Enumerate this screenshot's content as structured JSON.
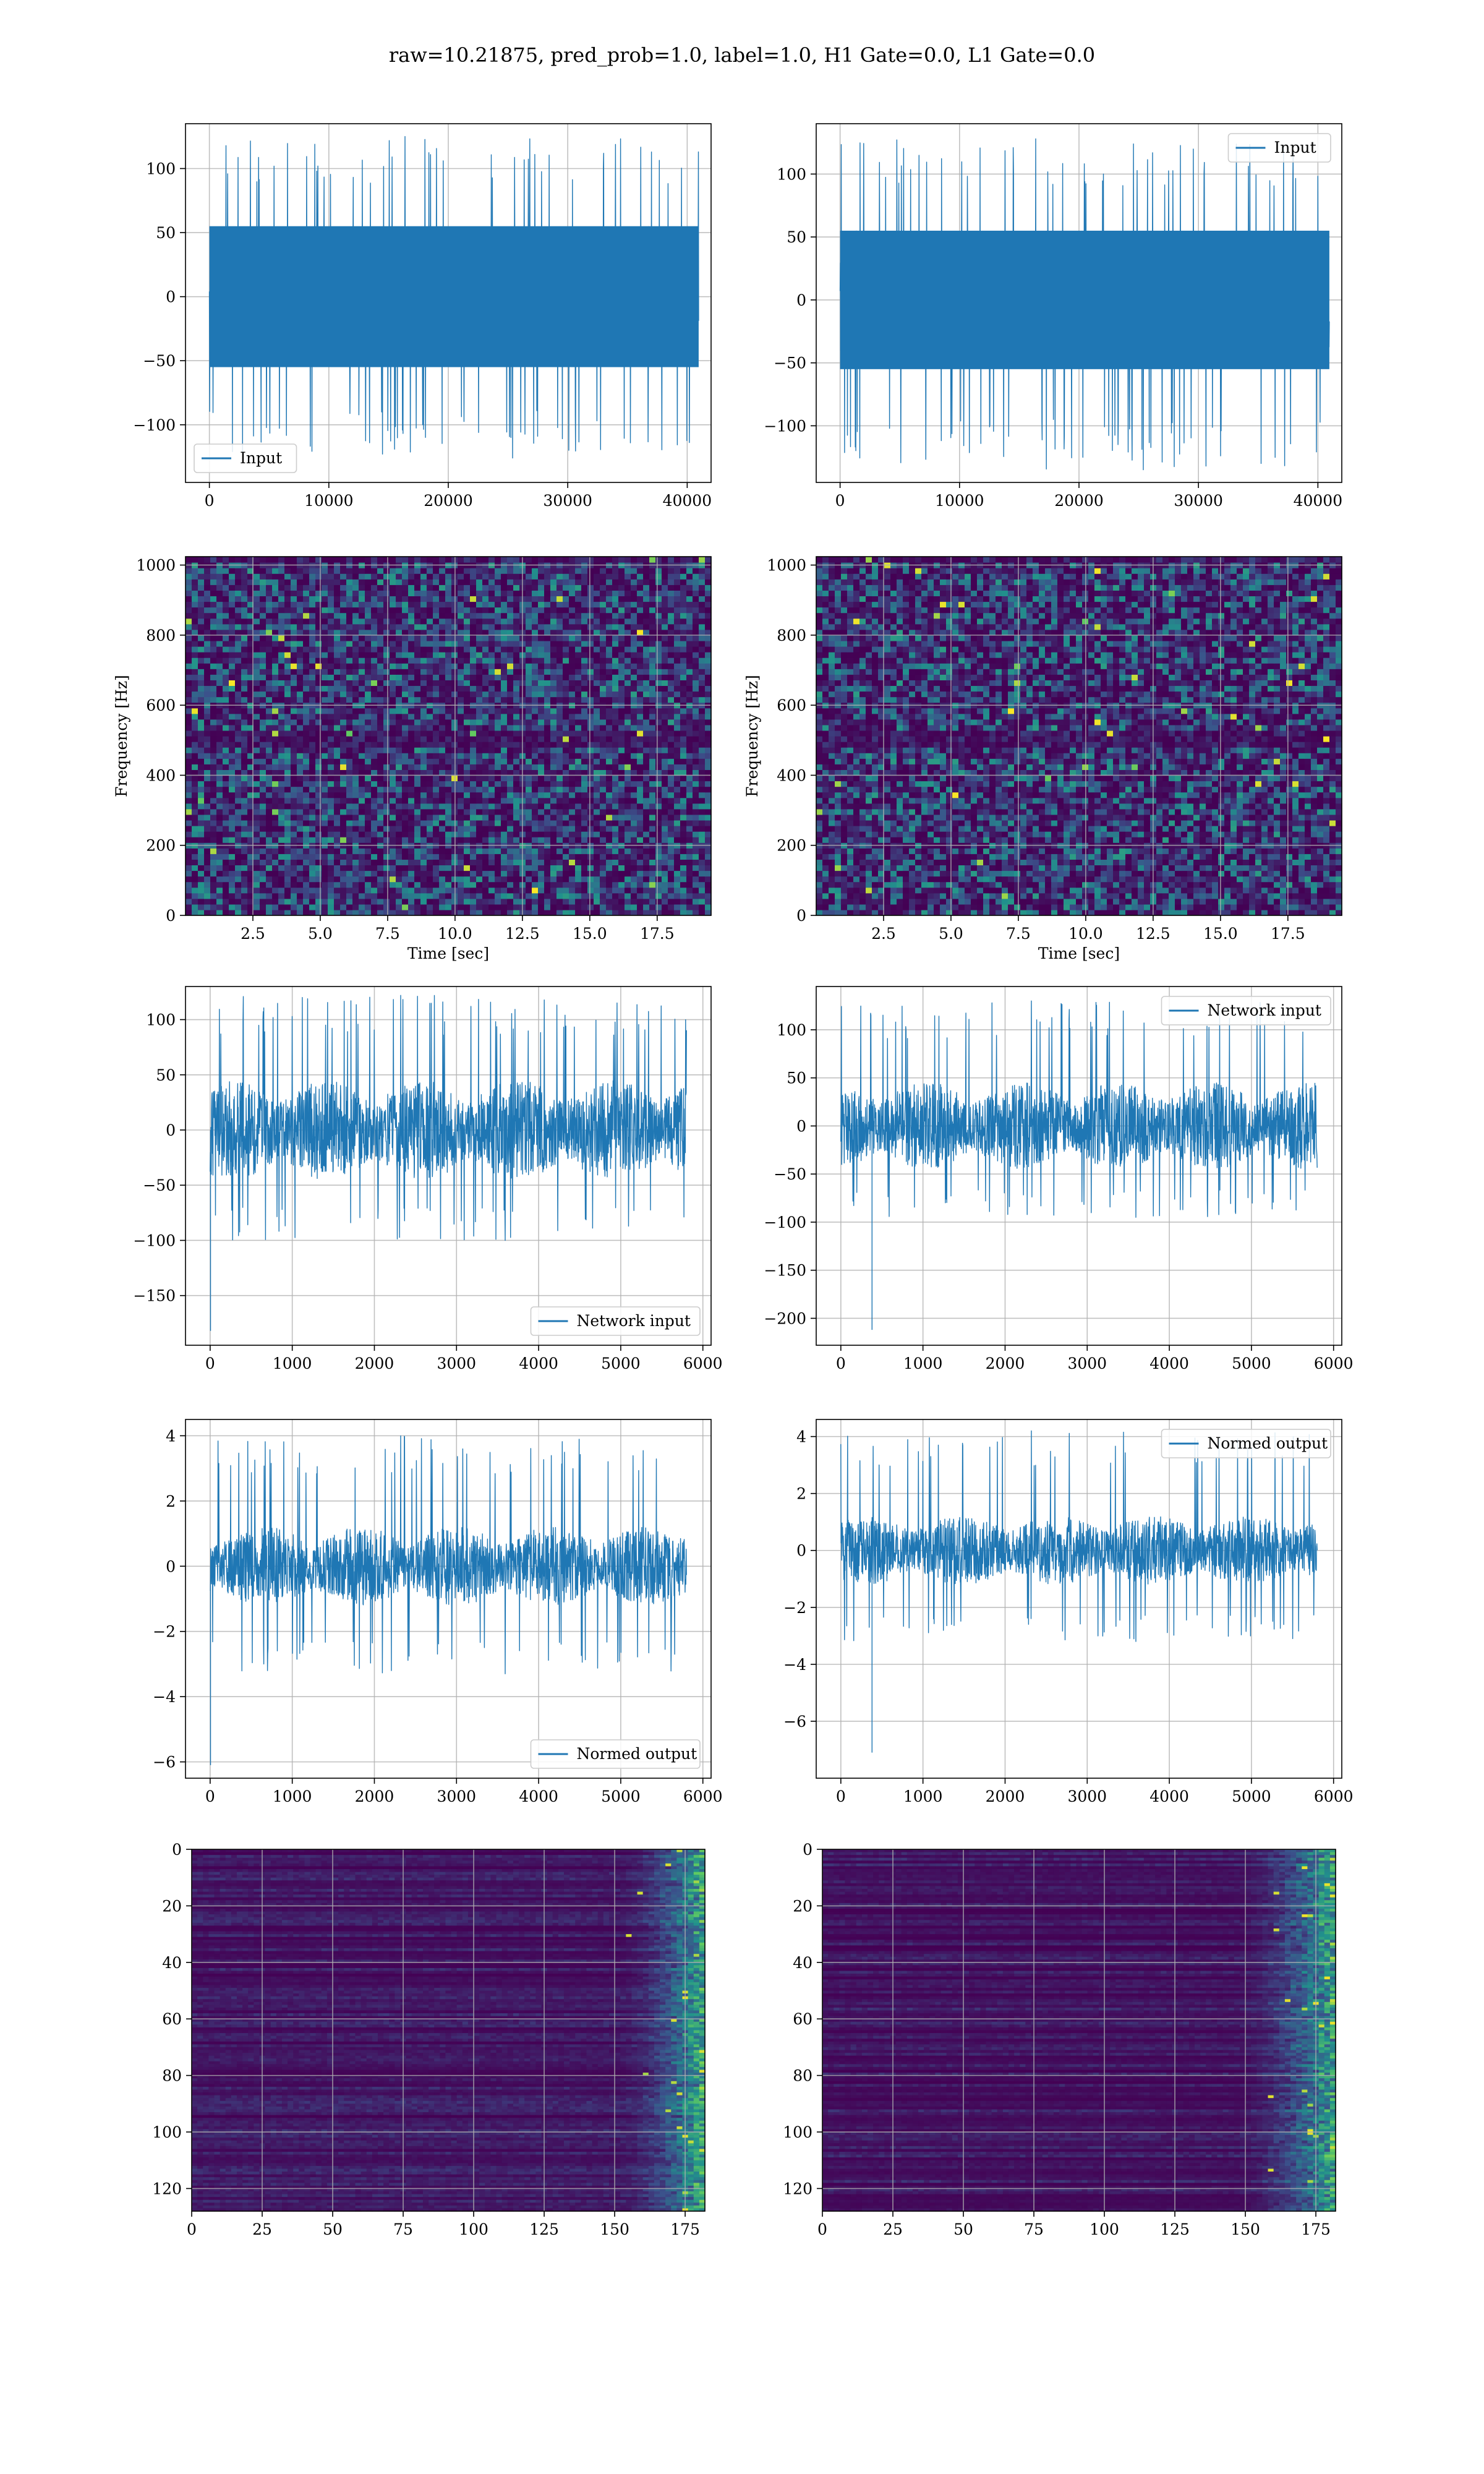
{
  "figure": {
    "suptitle": "raw=10.21875, pred_prob=1.0, label=1.0, H1 Gate=0.0, L1 Gate=0.0"
  },
  "colors": {
    "line": "#1f77b4",
    "grid": "#b0b0b0",
    "viridis_low": "#440154",
    "viridis_mid": "#21918c",
    "viridis_high": "#fde725"
  },
  "chart_data": [
    {
      "id": "row1-left",
      "type": "line",
      "signal": "noise-dense",
      "xlim": [
        -2000,
        42000
      ],
      "ylim": [
        -145,
        135
      ],
      "xticks": [
        0,
        10000,
        20000,
        30000,
        40000
      ],
      "yticks": [
        -100,
        -50,
        0,
        50,
        100
      ],
      "x_range": [
        0,
        40960
      ],
      "envelope": {
        "core": 55,
        "peak_max": 125,
        "peak_min": -126
      },
      "series": [
        {
          "name": "Input"
        }
      ],
      "legend": "lower left",
      "grid": true
    },
    {
      "id": "row1-right",
      "type": "line",
      "signal": "noise-dense",
      "xlim": [
        -2000,
        42000
      ],
      "ylim": [
        -145,
        140
      ],
      "xticks": [
        0,
        10000,
        20000,
        30000,
        40000
      ],
      "yticks": [
        -100,
        -50,
        0,
        50,
        100
      ],
      "x_range": [
        0,
        40960
      ],
      "envelope": {
        "core": 55,
        "peak_max": 128,
        "peak_min": -135
      },
      "series": [
        {
          "name": "Input"
        }
      ],
      "legend": "upper right",
      "grid": true
    },
    {
      "id": "row2-left",
      "type": "heatmap",
      "kind": "spectrogram",
      "xlim": [
        0,
        19.5
      ],
      "ylim": [
        0,
        1024
      ],
      "xticks": [
        2.5,
        5.0,
        7.5,
        10.0,
        12.5,
        15.0,
        17.5
      ],
      "yticks": [
        0,
        200,
        400,
        600,
        800,
        1000
      ],
      "xlabel": "Time [sec]",
      "ylabel": "Frequency [Hz]",
      "grid": true,
      "dark_band_hz": 500
    },
    {
      "id": "row2-right",
      "type": "heatmap",
      "kind": "spectrogram",
      "xlim": [
        0,
        19.5
      ],
      "ylim": [
        0,
        1024
      ],
      "xticks": [
        2.5,
        5.0,
        7.5,
        10.0,
        12.5,
        15.0,
        17.5
      ],
      "yticks": [
        0,
        200,
        400,
        600,
        800,
        1000
      ],
      "xlabel": "Time [sec]",
      "ylabel": "Frequency [Hz]",
      "grid": true,
      "dark_band_hz": 500
    },
    {
      "id": "row3-left",
      "type": "line",
      "signal": "noise-spiky",
      "xlim": [
        -300,
        6100
      ],
      "ylim": [
        -195,
        130
      ],
      "xticks": [
        0,
        1000,
        2000,
        3000,
        4000,
        5000,
        6000
      ],
      "yticks": [
        -150,
        -100,
        -50,
        0,
        50,
        100
      ],
      "x_range": [
        0,
        5800
      ],
      "envelope": {
        "core": 45,
        "peak_max": 122,
        "peak_min": -100
      },
      "spike": {
        "x": 5,
        "y": -182
      },
      "series": [
        {
          "name": "Network input"
        }
      ],
      "legend": "lower right",
      "grid": true
    },
    {
      "id": "row3-right",
      "type": "line",
      "signal": "noise-spiky",
      "xlim": [
        -300,
        6100
      ],
      "ylim": [
        -228,
        145
      ],
      "xticks": [
        0,
        1000,
        2000,
        3000,
        4000,
        5000,
        6000
      ],
      "yticks": [
        -200,
        -150,
        -100,
        -50,
        0,
        50,
        100
      ],
      "x_range": [
        0,
        5800
      ],
      "envelope": {
        "core": 45,
        "peak_max": 130,
        "peak_min": -95
      },
      "spike": {
        "x": 380,
        "y": -212
      },
      "series": [
        {
          "name": "Network input"
        }
      ],
      "legend": "upper right",
      "grid": true
    },
    {
      "id": "row4-left",
      "type": "line",
      "signal": "noise-spiky",
      "xlim": [
        -300,
        6100
      ],
      "ylim": [
        -6.5,
        4.5
      ],
      "xticks": [
        0,
        1000,
        2000,
        3000,
        4000,
        5000,
        6000
      ],
      "yticks": [
        -6,
        -4,
        -2,
        0,
        2,
        4
      ],
      "x_range": [
        0,
        5800
      ],
      "envelope": {
        "core": 1.2,
        "peak_max": 4.0,
        "peak_min": -3.3
      },
      "spike": {
        "x": 5,
        "y": -6.1
      },
      "series": [
        {
          "name": "Normed output"
        }
      ],
      "legend": "lower right",
      "grid": true
    },
    {
      "id": "row4-right",
      "type": "line",
      "signal": "noise-spiky",
      "xlim": [
        -300,
        6100
      ],
      "ylim": [
        -8.0,
        4.6
      ],
      "xticks": [
        0,
        1000,
        2000,
        3000,
        4000,
        5000,
        6000
      ],
      "yticks": [
        -6,
        -4,
        -2,
        0,
        2,
        4
      ],
      "x_range": [
        0,
        5800
      ],
      "envelope": {
        "core": 1.2,
        "peak_max": 4.2,
        "peak_min": -3.2
      },
      "spike": {
        "x": 380,
        "y": -7.1
      },
      "series": [
        {
          "name": "Normed output"
        }
      ],
      "legend": "upper right",
      "grid": true
    },
    {
      "id": "row5-left",
      "type": "heatmap",
      "kind": "feature-map",
      "xlim": [
        0,
        182
      ],
      "ylim": [
        128,
        0
      ],
      "xticks": [
        0,
        25,
        50,
        75,
        100,
        125,
        150,
        175
      ],
      "yticks": [
        0,
        20,
        40,
        60,
        80,
        100,
        120
      ],
      "grid": true,
      "bright_from_col": 150
    },
    {
      "id": "row5-right",
      "type": "heatmap",
      "kind": "feature-map",
      "xlim": [
        0,
        182
      ],
      "ylim": [
        128,
        0
      ],
      "xticks": [
        0,
        25,
        50,
        75,
        100,
        125,
        150,
        175
      ],
      "yticks": [
        0,
        20,
        40,
        60,
        80,
        100,
        120
      ],
      "grid": true,
      "bright_from_col": 145
    }
  ]
}
